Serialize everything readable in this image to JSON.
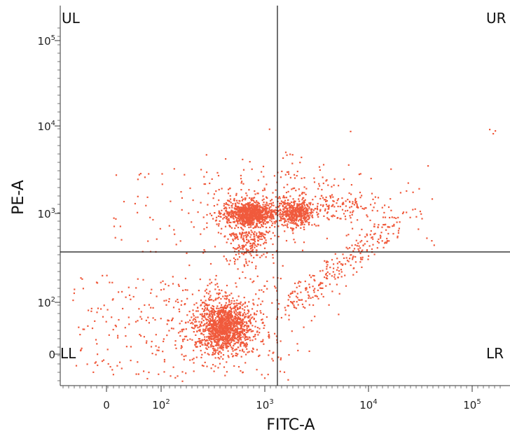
{
  "chart_data": {
    "type": "scatter",
    "title": "",
    "xlabel": "FITC-A",
    "ylabel": "PE-A",
    "scale": "biexponential (log above ~10^2)",
    "dot_color": "#f05a3c",
    "quadrant_labels": {
      "ul": "UL",
      "ur": "UR",
      "ll": "LL",
      "lr": "LR"
    },
    "x_gate": 1300,
    "y_gate": 350,
    "x_ticks": [
      {
        "base": "0",
        "exp": ""
      },
      {
        "base": "10",
        "exp": "2"
      },
      {
        "base": "10",
        "exp": "3"
      },
      {
        "base": "10",
        "exp": "4"
      },
      {
        "base": "10",
        "exp": "5"
      }
    ],
    "y_ticks": [
      {
        "base": "0",
        "exp": ""
      },
      {
        "base": "10",
        "exp": "2"
      },
      {
        "base": "10",
        "exp": "3"
      },
      {
        "base": "10",
        "exp": "4"
      },
      {
        "base": "10",
        "exp": "5"
      }
    ],
    "clusters": [
      {
        "name": "LL dense population",
        "x_center": 400,
        "y_center": 55,
        "count": 1200
      },
      {
        "name": "UL population",
        "x_center": 700,
        "y_center": 1000,
        "count": 900
      },
      {
        "name": "UR population",
        "x_center": 2000,
        "y_center": 1050,
        "count": 450
      },
      {
        "name": "LR diagonal tail",
        "x_range": [
          1300,
          40000
        ],
        "y_range": [
          100,
          3000
        ],
        "count": 260
      }
    ]
  }
}
